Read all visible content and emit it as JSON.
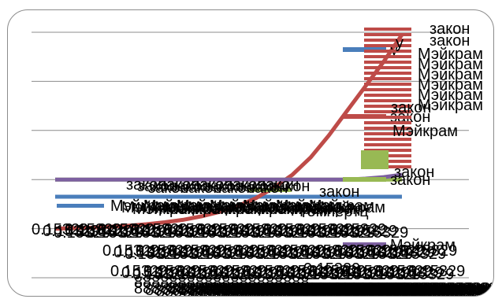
{
  "chart_data": {
    "type": "line",
    "title": "",
    "xlabel": "",
    "ylabel": "",
    "ylim": [
      0,
      5
    ],
    "grid": true,
    "legend": "overlapping, right side",
    "gridline_count": 6,
    "series": [
      {
        "name": "у",
        "color": "#4a7ebb",
        "values": [
          1.65,
          1.65,
          1.65,
          1.65,
          1.65,
          1.65,
          1.65,
          1.65,
          1.65,
          1.65,
          1.65,
          1.65,
          1.65,
          1.65,
          1.65,
          1.65,
          1.65,
          1.65,
          1.65,
          1.65
        ]
      },
      {
        "name": "закон",
        "color": "#be4b48",
        "values": [
          1.0,
          1.01,
          1.02,
          1.04,
          1.06,
          1.09,
          1.13,
          1.18,
          1.25,
          1.34,
          1.46,
          1.62,
          1.84,
          2.1,
          2.45,
          2.9,
          3.4,
          3.9,
          4.4,
          4.95
        ]
      },
      {
        "name": "закон",
        "color": "#98b954",
        "values": [
          2.0,
          2.0,
          2.0,
          2.0,
          2.0,
          2.0,
          2.0,
          2.0,
          2.0,
          2.0,
          2.0,
          2.0,
          2.0,
          2.0,
          2.0,
          2.0,
          2.0,
          2.0,
          2.0,
          2.0
        ]
      },
      {
        "name": "Мэйкрам",
        "color": "#7d60a0",
        "values": [
          2.0,
          2.0,
          2.0,
          2.0,
          2.0,
          2.0,
          2.0,
          2.0,
          2.0,
          2.0,
          2.0,
          2.0,
          2.0,
          2.0,
          2.0,
          2.0,
          2.0,
          2.02,
          2.05,
          2.1
        ]
      }
    ],
    "text_labels": [
      {
        "text": "закон",
        "color": "#000000"
      },
      {
        "text": "закон",
        "color": "#000000"
      },
      {
        "text": "у",
        "color": "#000000"
      },
      {
        "text": "Мэйкрам",
        "color": "#000000"
      },
      {
        "text": "Мэйкрам",
        "color": "#000000"
      },
      {
        "text": "Мэйкрам",
        "color": "#000000"
      },
      {
        "text": "Мэйкрам",
        "color": "#000000"
      },
      {
        "text": "Мэйкрам",
        "color": "#000000"
      },
      {
        "text": "Мэйкрам",
        "color": "#000000"
      },
      {
        "text": "закон",
        "color": "#000000"
      },
      {
        "text": "Мэйкрам",
        "color": "#000000"
      },
      {
        "text": "закон",
        "color": "#000000"
      },
      {
        "text": "закон",
        "color": "#000000"
      },
      {
        "text": "Гомпертц",
        "color": "#000000"
      },
      {
        "text": "0.15329",
        "color": "#000000"
      },
      {
        "text": "88888888888888888888",
        "color": "#000000"
      }
    ]
  }
}
